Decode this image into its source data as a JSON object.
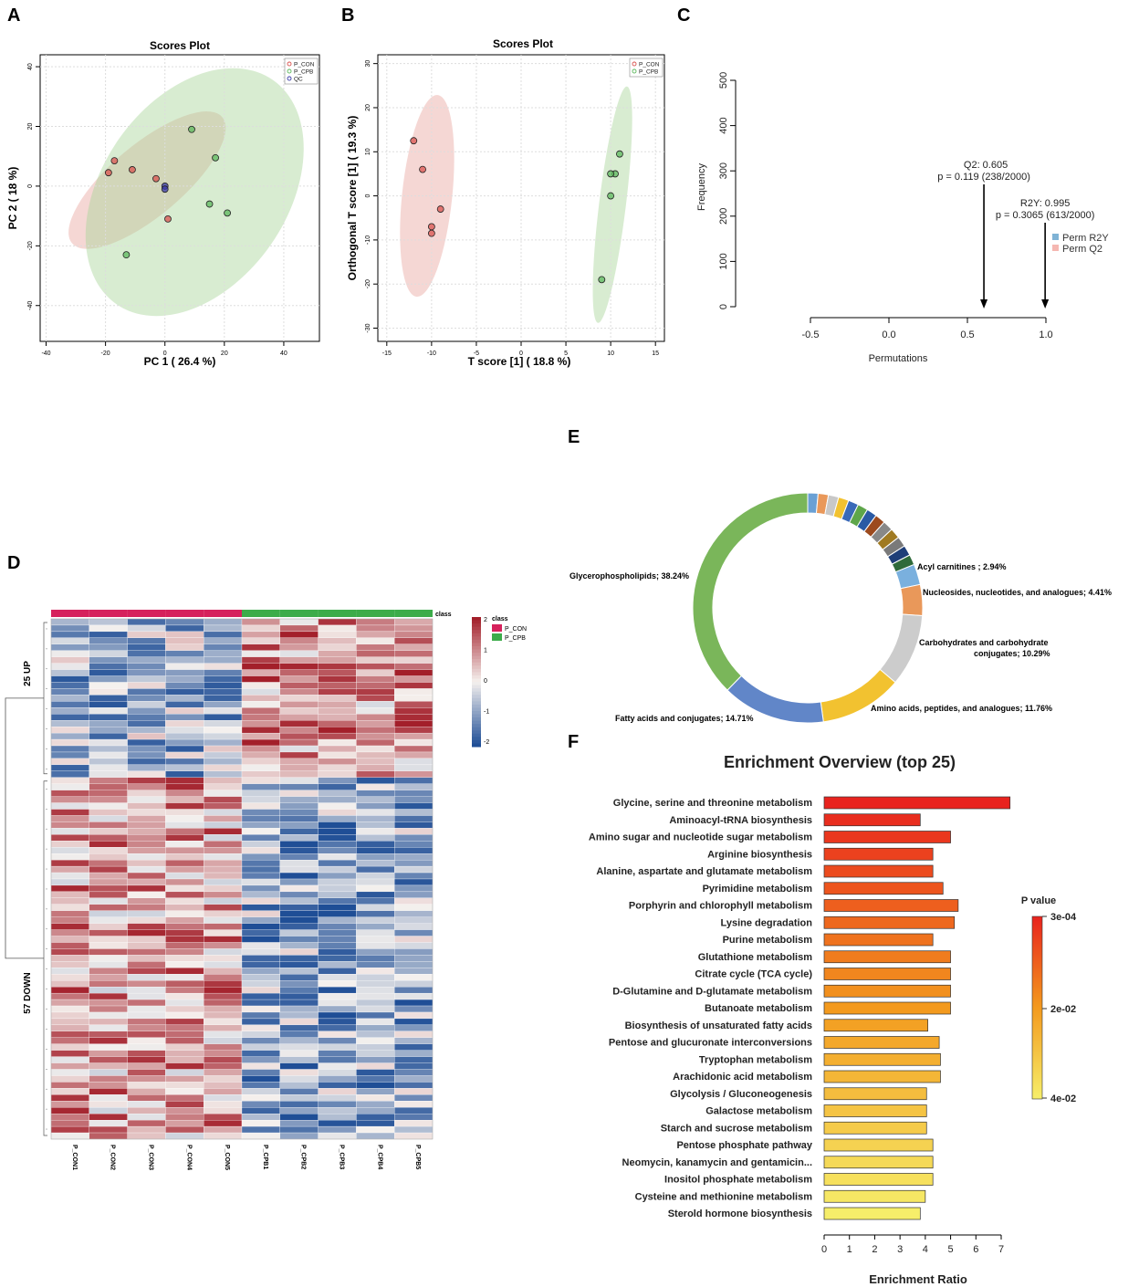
{
  "panel_labels": [
    "A",
    "B",
    "C",
    "D",
    "E",
    "F"
  ],
  "chart_data": [
    {
      "id": "A",
      "type": "scatter",
      "title": "Scores Plot",
      "xlabel": "PC 1 ( 26.4 %)",
      "ylabel": "PC 2 ( 18 %)",
      "xlim": [
        -42,
        52
      ],
      "ylim": [
        -52,
        44
      ],
      "xticks": [
        -40,
        -20,
        0,
        20,
        40
      ],
      "yticks": [
        -40,
        -20,
        0,
        20,
        40
      ],
      "legend": [
        {
          "name": "P_CON",
          "color": "#d9534f"
        },
        {
          "name": "P_CPB",
          "color": "#5cb85c"
        },
        {
          "name": "QC",
          "color": "#3a3aa8"
        }
      ],
      "series": [
        {
          "name": "P_CON",
          "color": "#d9534f",
          "x": [
            -19,
            -17,
            -11,
            -3,
            1
          ],
          "y": [
            4.5,
            8.5,
            5.5,
            2.5,
            -11
          ]
        },
        {
          "name": "P_CPB",
          "color": "#5cb85c",
          "x": [
            9,
            17,
            21,
            15,
            -13
          ],
          "y": [
            19,
            9.5,
            -9,
            -6,
            -23
          ]
        },
        {
          "name": "QC",
          "color": "#3a3aa8",
          "x": [
            0,
            0
          ],
          "y": [
            0,
            -1
          ]
        }
      ],
      "ellipses": [
        {
          "name": "P_CON",
          "cx": -6,
          "cy": 2,
          "rx": 33,
          "ry": 12,
          "angle": -40,
          "color": "#e8a6a0"
        },
        {
          "name": "P_CPB",
          "cx": 10,
          "cy": -2,
          "rx": 46,
          "ry": 31,
          "angle": -55,
          "color": "#a8d49a"
        }
      ]
    },
    {
      "id": "B",
      "type": "scatter",
      "title": "Scores Plot",
      "xlabel": "T score [1] ( 18.8 %)",
      "ylabel": "Orthogonal T score [1] ( 19.3 %)",
      "xlim": [
        -16,
        16
      ],
      "ylim": [
        -33,
        32
      ],
      "xticks": [
        -15,
        -10,
        -5,
        0,
        5,
        10,
        15
      ],
      "yticks": [
        -30,
        -20,
        -10,
        0,
        10,
        20,
        30
      ],
      "legend": [
        {
          "name": "P_CON",
          "color": "#d9534f"
        },
        {
          "name": "P_CPB",
          "color": "#5cb85c"
        }
      ],
      "series": [
        {
          "name": "P_CON",
          "color": "#d9534f",
          "x": [
            -12,
            -11,
            -9,
            -10,
            -10
          ],
          "y": [
            12.5,
            6,
            -3,
            -7,
            -8.5
          ]
        },
        {
          "name": "P_CPB",
          "color": "#5cb85c",
          "x": [
            11,
            10.5,
            10,
            10,
            9
          ],
          "y": [
            9.5,
            5,
            5,
            0,
            -19
          ]
        }
      ],
      "ellipses": [
        {
          "name": "P_CON",
          "cx": -10.5,
          "cy": 0,
          "rx": 2.8,
          "ry": 23,
          "angle": 6,
          "color": "#e8a6a0"
        },
        {
          "name": "P_CPB",
          "cx": 10.2,
          "cy": -2,
          "rx": 1.5,
          "ry": 27,
          "angle": 7,
          "color": "#a8d49a"
        }
      ]
    },
    {
      "id": "C",
      "type": "bar",
      "xlabel": "Permutations",
      "ylabel": "Frequency",
      "xlim": [
        -0.5,
        1.0
      ],
      "ylim": [
        0,
        500
      ],
      "xticks": [
        "-0.5",
        "0.0",
        "0.5",
        "1.0"
      ],
      "yticks": [
        0,
        100,
        200,
        300,
        400,
        500
      ],
      "legend": [
        {
          "name": "Perm R2Y",
          "color": "#7fb3d5"
        },
        {
          "name": "Perm Q2",
          "color": "#f5b7b1"
        }
      ],
      "annotations": [
        {
          "label": "Q2: 0.605",
          "text": "p = 0.119 (238/2000)",
          "x": 0.605
        },
        {
          "label": "R2Y: 0.995",
          "text": "p = 0.3065 (613/2000)",
          "x": 0.995
        }
      ]
    },
    {
      "id": "D",
      "type": "heatmap",
      "columns": [
        "P_CON1",
        "P_CON2",
        "P_CON3",
        "P_CON4",
        "P_CON5",
        "P_CPB1",
        "P_CPB2",
        "P_CPB3",
        "P_CPB4",
        "P_CPB5"
      ],
      "groups": [
        {
          "name": "P_CON",
          "color": "#d6215c"
        },
        {
          "name": "P_CPB",
          "color": "#3cac4a"
        }
      ],
      "class_label": "class",
      "legend_title": "class",
      "row_groups": [
        {
          "label": "25 UP",
          "count": 25
        },
        {
          "label": "57 DOWN",
          "count": 57
        }
      ],
      "scale": {
        "min": -2,
        "max": 2,
        "ticks": [
          "2",
          "1",
          "0",
          "-1",
          "-2"
        ]
      },
      "colors": {
        "low": "#1f4e96",
        "mid": "#f5f1ee",
        "high": "#a31f2a"
      }
    },
    {
      "id": "E",
      "type": "pie",
      "donut": true,
      "labeled_slices": [
        {
          "label": "Glycerophospholipids; 38.24%",
          "value": 38.24,
          "color": "#7ab65a"
        },
        {
          "label": "Fatty acids and conjugates; 14.71%",
          "value": 14.71,
          "color": "#6186c8"
        },
        {
          "label": "Amino acids, peptides, and analogues; 11.76%",
          "value": 11.76,
          "color": "#f2c230"
        },
        {
          "label": "Carbohydrates and carbohydrate conjugates; 10.29%",
          "value": 10.29,
          "color": "#cccccc"
        },
        {
          "label": "Nucleosides, nucleotides, and analogues; 4.41%",
          "value": 4.41,
          "color": "#e9985a"
        },
        {
          "label": "Acyl carnitines ; 2.94%",
          "value": 2.94,
          "color": "#7ab0de"
        }
      ],
      "small_slices": [
        {
          "value": 1.47,
          "color": "#2e6a3a"
        },
        {
          "value": 1.47,
          "color": "#1e3e78"
        },
        {
          "value": 1.47,
          "color": "#7a7a7a"
        },
        {
          "value": 1.47,
          "color": "#a07a22"
        },
        {
          "value": 1.47,
          "color": "#888888"
        },
        {
          "value": 1.47,
          "color": "#9c4a1e"
        },
        {
          "value": 1.47,
          "color": "#2a5aa4"
        },
        {
          "value": 1.47,
          "color": "#5ea64a"
        },
        {
          "value": 1.47,
          "color": "#3a6ab8"
        },
        {
          "value": 1.47,
          "color": "#f2c230"
        },
        {
          "value": 1.47,
          "color": "#c8c8c8"
        },
        {
          "value": 1.47,
          "color": "#e9985a"
        },
        {
          "value": 1.47,
          "color": "#6aa0d4"
        }
      ]
    },
    {
      "id": "F",
      "type": "bar",
      "orientation": "horizontal",
      "title": "Enrichment Overview (top 25)",
      "xlabel": "Enrichment Ratio",
      "xlim": [
        0,
        7
      ],
      "xticks": [
        0,
        1,
        2,
        3,
        4,
        5,
        6,
        7
      ],
      "legend_title": "P value",
      "legend_ticks": [
        "3e-04",
        "2e-02",
        "4e-02"
      ],
      "categories": [
        "Glycine, serine and threonine metabolism",
        "Aminoacyl-tRNA biosynthesis",
        "Amino sugar and nucleotide sugar metabolism",
        "Arginine biosynthesis",
        "Alanine, aspartate and glutamate metabolism",
        "Pyrimidine metabolism",
        "Porphyrin and chlorophyll metabolism",
        "Lysine degradation",
        "Purine metabolism",
        "Glutathione metabolism",
        "Citrate cycle (TCA cycle)",
        "D-Glutamine and D-glutamate metabolism",
        "Butanoate metabolism",
        "Biosynthesis of unsaturated fatty acids",
        "Pentose and glucuronate interconversions",
        "Tryptophan metabolism",
        "Arachidonic acid metabolism",
        "Glycolysis / Gluconeogenesis",
        "Galactose metabolism",
        "Starch and sucrose metabolism",
        "Pentose phosphate pathway",
        "Neomycin, kanamycin and gentamicin...",
        "Inositol phosphate metabolism",
        "Cysteine and methionine metabolism",
        "Sterold hormone biosynthesis"
      ],
      "values": [
        7.35,
        3.8,
        5.0,
        4.3,
        4.3,
        4.7,
        5.3,
        5.15,
        4.3,
        5.0,
        5.0,
        5.0,
        5.0,
        4.1,
        4.55,
        4.6,
        4.6,
        4.05,
        4.05,
        4.05,
        4.3,
        4.3,
        4.3,
        4.0,
        3.8
      ]
    }
  ]
}
